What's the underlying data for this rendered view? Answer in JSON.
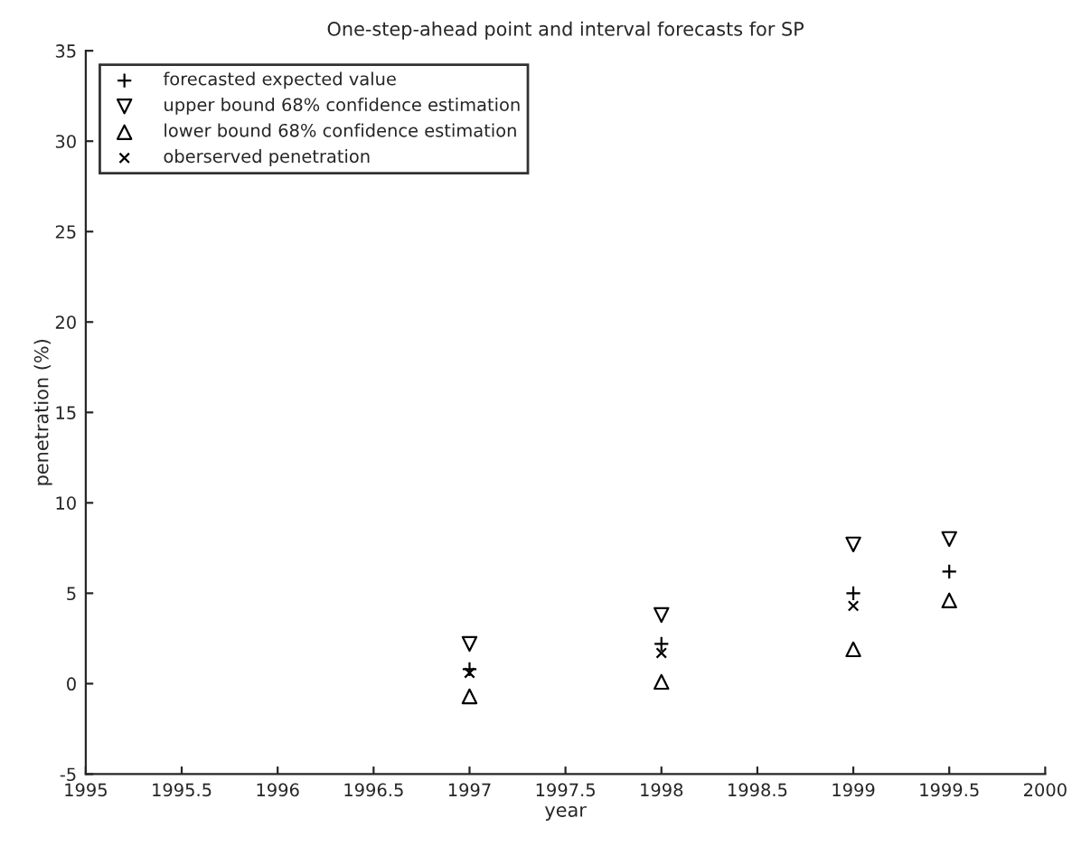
{
  "chart_data": {
    "type": "scatter",
    "title": "One-step-ahead point and interval forecasts for SP",
    "xlabel": "year",
    "ylabel": "penetration (%)",
    "xlim": [
      1995,
      2000
    ],
    "xticks": [
      1995,
      1995.5,
      1996,
      1996.5,
      1997,
      1997.5,
      1998,
      1998.5,
      1999,
      1999.5,
      2000
    ],
    "ylim": [
      -5,
      35
    ],
    "yticks": [
      -5,
      0,
      5,
      10,
      15,
      20,
      25,
      30,
      35
    ],
    "x": [
      1997,
      1998,
      1999,
      1999.5
    ],
    "series": [
      {
        "name": "forecasted expected value",
        "color": "#000000",
        "marker": "cross",
        "values": [
          0.8,
          2.2,
          5.0,
          6.2
        ]
      },
      {
        "name": "upper bound 68% confidence estimation",
        "color": "#000000",
        "marker": "triangle_down",
        "values": [
          2.2,
          3.8,
          7.7,
          8.0
        ]
      },
      {
        "name": "lower bound 68% confidence estimation",
        "color": "#000000",
        "marker": "triangle",
        "values": [
          -0.7,
          0.1,
          1.9,
          4.6
        ]
      },
      {
        "name": "oberserved penetration",
        "color": "#000000",
        "marker": "x",
        "values": [
          0.6,
          1.7,
          4.3,
          null
        ]
      }
    ],
    "legend": "top left",
    "grid": false
  }
}
